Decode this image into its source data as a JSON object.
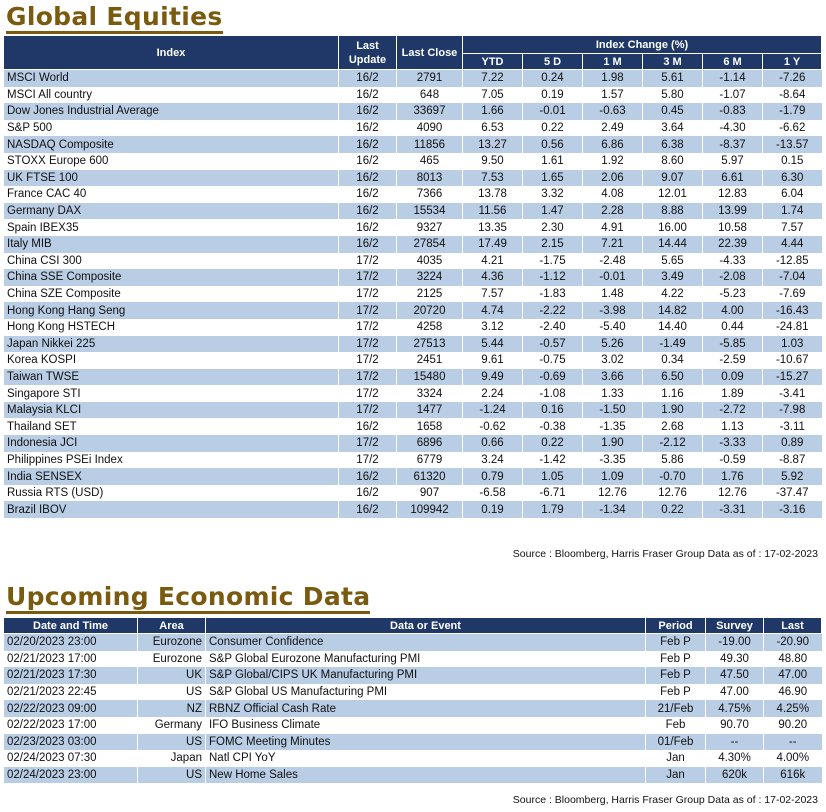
{
  "equities": {
    "title": "Global Equities",
    "headers": {
      "index": "Index",
      "last_update": "Last Update",
      "last_close": "Last Close",
      "index_change": "Index Change (%)",
      "ytd": "YTD",
      "d5": "5 D",
      "m1": "1 M",
      "m3": "3 M",
      "m6": "6 M",
      "y1": "1 Y"
    },
    "rows": [
      [
        "MSCI World",
        "16/2",
        "2791",
        "7.22",
        "0.24",
        "1.98",
        "5.61",
        "-1.14",
        "-7.26"
      ],
      [
        "MSCI All country",
        "16/2",
        "648",
        "7.05",
        "0.19",
        "1.57",
        "5.80",
        "-1.07",
        "-8.64"
      ],
      [
        "Dow Jones Industrial Average",
        "16/2",
        "33697",
        "1.66",
        "-0.01",
        "-0.63",
        "0.45",
        "-0.83",
        "-1.79"
      ],
      [
        "S&P 500",
        "16/2",
        "4090",
        "6.53",
        "0.22",
        "2.49",
        "3.64",
        "-4.30",
        "-6.62"
      ],
      [
        "NASDAQ Composite",
        "16/2",
        "11856",
        "13.27",
        "0.56",
        "6.86",
        "6.38",
        "-8.37",
        "-13.57"
      ],
      [
        "STOXX Europe 600",
        "16/2",
        "465",
        "9.50",
        "1.61",
        "1.92",
        "8.60",
        "5.97",
        "0.15"
      ],
      [
        "UK FTSE 100",
        "16/2",
        "8013",
        "7.53",
        "1.65",
        "2.06",
        "9.07",
        "6.61",
        "6.30"
      ],
      [
        "France CAC 40",
        "16/2",
        "7366",
        "13.78",
        "3.32",
        "4.08",
        "12.01",
        "12.83",
        "6.04"
      ],
      [
        "Germany DAX",
        "16/2",
        "15534",
        "11.56",
        "1.47",
        "2.28",
        "8.88",
        "13.99",
        "1.74"
      ],
      [
        "Spain IBEX35",
        "16/2",
        "9327",
        "13.35",
        "2.30",
        "4.91",
        "16.00",
        "10.58",
        "7.57"
      ],
      [
        "Italy MIB",
        "16/2",
        "27854",
        "17.49",
        "2.15",
        "7.21",
        "14.44",
        "22.39",
        "4.44"
      ],
      [
        "China CSI 300",
        "17/2",
        "4035",
        "4.21",
        "-1.75",
        "-2.48",
        "5.65",
        "-4.33",
        "-12.85"
      ],
      [
        "China SSE Composite",
        "17/2",
        "3224",
        "4.36",
        "-1.12",
        "-0.01",
        "3.49",
        "-2.08",
        "-7.04"
      ],
      [
        "China SZE Composite",
        "17/2",
        "2125",
        "7.57",
        "-1.83",
        "1.48",
        "4.22",
        "-5.23",
        "-7.69"
      ],
      [
        "Hong Kong Hang Seng",
        "17/2",
        "20720",
        "4.74",
        "-2.22",
        "-3.98",
        "14.82",
        "4.00",
        "-16.43"
      ],
      [
        "Hong Kong HSTECH",
        "17/2",
        "4258",
        "3.12",
        "-2.40",
        "-5.40",
        "14.40",
        "0.44",
        "-24.81"
      ],
      [
        "Japan Nikkei 225",
        "17/2",
        "27513",
        "5.44",
        "-0.57",
        "5.26",
        "-1.49",
        "-5.85",
        "1.03"
      ],
      [
        "Korea KOSPI",
        "17/2",
        "2451",
        "9.61",
        "-0.75",
        "3.02",
        "0.34",
        "-2.59",
        "-10.67"
      ],
      [
        "Taiwan TWSE",
        "17/2",
        "15480",
        "9.49",
        "-0.69",
        "3.66",
        "6.50",
        "0.09",
        "-15.27"
      ],
      [
        "Singapore STI",
        "17/2",
        "3324",
        "2.24",
        "-1.08",
        "1.33",
        "1.16",
        "1.89",
        "-3.41"
      ],
      [
        "Malaysia KLCI",
        "17/2",
        "1477",
        "-1.24",
        "0.16",
        "-1.50",
        "1.90",
        "-2.72",
        "-7.98"
      ],
      [
        "Thailand SET",
        "16/2",
        "1658",
        "-0.62",
        "-0.38",
        "-1.35",
        "2.68",
        "1.13",
        "-3.11"
      ],
      [
        "Indonesia JCI",
        "17/2",
        "6896",
        "0.66",
        "0.22",
        "1.90",
        "-2.12",
        "-3.33",
        "0.89"
      ],
      [
        "Philippines PSEi Index",
        "17/2",
        "6779",
        "3.24",
        "-1.42",
        "-3.35",
        "5.86",
        "-0.59",
        "-8.87"
      ],
      [
        "India SENSEX",
        "16/2",
        "61320",
        "0.79",
        "1.05",
        "1.09",
        "-0.70",
        "1.76",
        "5.92"
      ],
      [
        "Russia RTS (USD)",
        "16/2",
        "907",
        "-6.58",
        "-6.71",
        "12.76",
        "12.76",
        "12.76",
        "-37.47"
      ],
      [
        "Brazil IBOV",
        "16/2",
        "109942",
        "0.19",
        "1.79",
        "-1.34",
        "0.22",
        "-3.31",
        "-3.16"
      ]
    ],
    "source": "Source : Bloomberg, Harris Fraser Group Data as of : 17-02-2023"
  },
  "economic": {
    "title": "Upcoming Economic Data",
    "headers": {
      "date_time": "Date and Time",
      "area": "Area",
      "event": "Data or Event",
      "period": "Period",
      "survey": "Survey",
      "last": "Last"
    },
    "rows": [
      [
        "02/20/2023 23:00",
        "Eurozone",
        "Consumer Confidence",
        "Feb P",
        "-19.00",
        "-20.90"
      ],
      [
        "02/21/2023 17:00",
        "Eurozone",
        "S&P Global Eurozone Manufacturing PMI",
        "Feb P",
        "49.30",
        "48.80"
      ],
      [
        "02/21/2023 17:30",
        "UK",
        "S&P Global/CIPS UK Manufacturing PMI",
        "Feb P",
        "47.50",
        "47.00"
      ],
      [
        "02/21/2023 22:45",
        "US",
        "S&P Global US Manufacturing PMI",
        "Feb P",
        "47.00",
        "46.90"
      ],
      [
        "02/22/2023 09:00",
        "NZ",
        "RBNZ Official Cash Rate",
        "21/Feb",
        "4.75%",
        "4.25%"
      ],
      [
        "02/22/2023 17:00",
        "Germany",
        "IFO Business Climate",
        "Feb",
        "90.70",
        "90.20"
      ],
      [
        "02/23/2023 03:00",
        "US",
        "FOMC Meeting Minutes",
        "01/Feb",
        "--",
        "--"
      ],
      [
        "02/24/2023 07:30",
        "Japan",
        "Natl CPI YoY",
        "Jan",
        "4.30%",
        "4.00%"
      ],
      [
        "02/24/2023 23:00",
        "US",
        "New Home Sales",
        "Jan",
        "620k",
        "616k"
      ]
    ],
    "source": "Source : Bloomberg, Harris Fraser Group Data as of : 17-02-2023"
  },
  "colors": {
    "header_bg": "#1f3868",
    "alt_row": "#b9cde5",
    "title_color": "#7a5a0e"
  }
}
